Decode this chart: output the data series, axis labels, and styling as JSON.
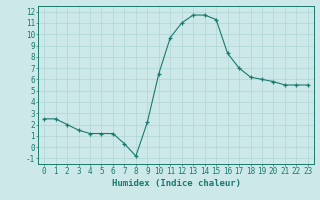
{
  "x": [
    0,
    1,
    2,
    3,
    4,
    5,
    6,
    7,
    8,
    9,
    10,
    11,
    12,
    13,
    14,
    15,
    16,
    17,
    18,
    19,
    20,
    21,
    22,
    23
  ],
  "y": [
    2.5,
    2.5,
    2.0,
    1.5,
    1.2,
    1.2,
    1.2,
    0.3,
    -0.8,
    2.2,
    6.5,
    9.7,
    11.0,
    11.7,
    11.7,
    11.3,
    8.3,
    7.0,
    6.2,
    6.0,
    5.8,
    5.5,
    5.5,
    5.5
  ],
  "xlabel": "Humidex (Indice chaleur)",
  "xlim": [
    -0.5,
    23.5
  ],
  "ylim": [
    -1.5,
    12.5
  ],
  "yticks": [
    -1,
    0,
    1,
    2,
    3,
    4,
    5,
    6,
    7,
    8,
    9,
    10,
    11,
    12
  ],
  "xticks": [
    0,
    1,
    2,
    3,
    4,
    5,
    6,
    7,
    8,
    9,
    10,
    11,
    12,
    13,
    14,
    15,
    16,
    17,
    18,
    19,
    20,
    21,
    22,
    23
  ],
  "line_color": "#1a7a6e",
  "bg_color": "#cce8e8",
  "grid_color": "#b0d4d4",
  "xlabel_fontsize": 6.5,
  "tick_fontsize": 5.5
}
